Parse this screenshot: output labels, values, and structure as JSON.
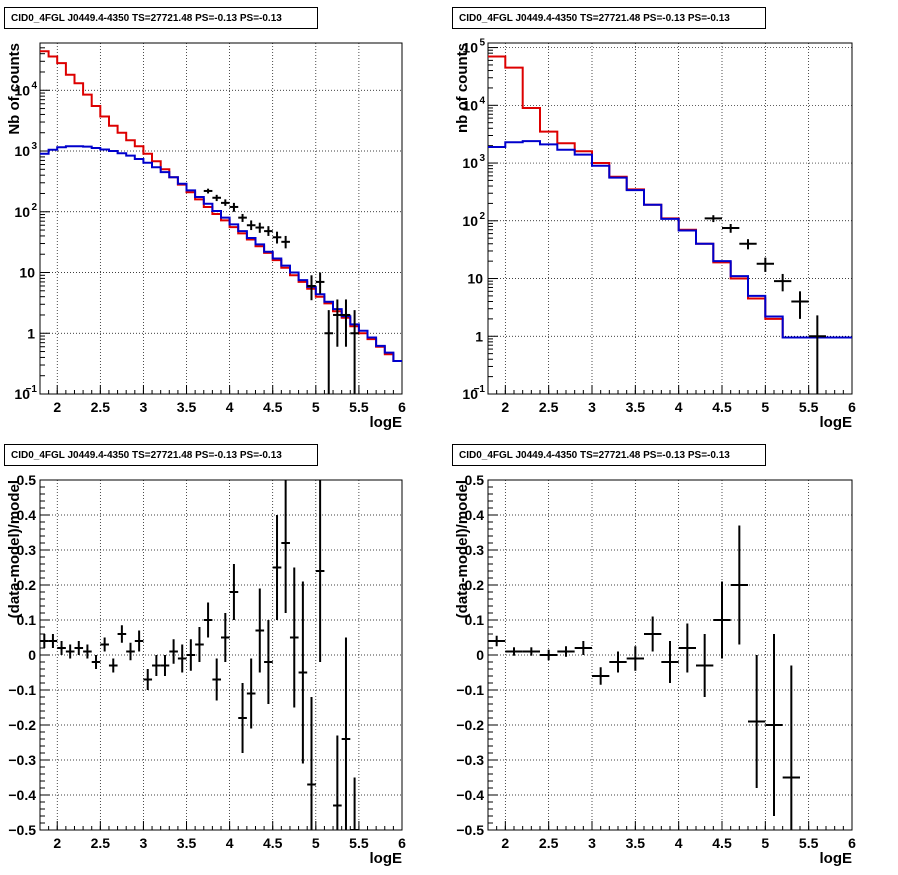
{
  "chart_data": [
    {
      "type": "line",
      "title": "CID0_4FGL J0449.4-4350 TS=27721.48 PS=-0.13 PS=-0.13",
      "xlabel": "logE",
      "ylabel": "Nb of counts",
      "xlim": [
        1.8,
        6.0
      ],
      "ylim": [
        0.1,
        60000
      ],
      "ylog": true,
      "grid": true,
      "xticks": [
        "2",
        "2.5",
        "3",
        "3.5",
        "4",
        "4.5",
        "5",
        "5.5",
        "6"
      ],
      "yticks": [
        {
          "v": 0.1,
          "label": "10",
          "sup": "−1"
        },
        {
          "v": 1,
          "label": "1",
          "sup": ""
        },
        {
          "v": 10,
          "label": "10",
          "sup": ""
        },
        {
          "v": 100,
          "label": "10",
          "sup": "2"
        },
        {
          "v": 1000,
          "label": "10",
          "sup": "3"
        },
        {
          "v": 10000,
          "label": "10",
          "sup": "4"
        }
      ],
      "bin_width": 0.1,
      "bin_start": 1.8,
      "series": [
        {
          "color": "#dd0000",
          "kind": "step",
          "values": [
            44000,
            36000,
            28000,
            18000,
            13000,
            8500,
            5500,
            3700,
            2600,
            2000,
            1500,
            1200,
            900,
            680,
            500,
            370,
            280,
            210,
            160,
            120,
            92,
            72,
            56,
            44,
            35,
            27,
            21,
            16,
            12,
            9,
            7,
            5.4,
            4,
            3.1,
            2.3,
            1.8,
            1.3,
            1.0,
            0.8,
            0.6,
            0.45,
            0.35
          ]
        },
        {
          "color": "#0000cc",
          "kind": "step",
          "values": [
            900,
            1050,
            1150,
            1200,
            1200,
            1180,
            1120,
            1060,
            1000,
            920,
            840,
            740,
            640,
            540,
            450,
            370,
            290,
            225,
            175,
            135,
            103,
            80,
            62,
            48,
            37,
            29,
            22,
            17,
            13,
            10,
            7.5,
            5.8,
            4.4,
            3.3,
            2.5,
            1.9,
            1.4,
            1.1,
            0.85,
            0.62,
            0.48,
            0.35
          ]
        }
      ],
      "points": [
        {
          "x": 3.75,
          "y": 220,
          "ylo": 200,
          "yhi": 240
        },
        {
          "x": 3.85,
          "y": 170,
          "ylo": 150,
          "yhi": 190
        },
        {
          "x": 3.95,
          "y": 140,
          "ylo": 125,
          "yhi": 160
        },
        {
          "x": 4.05,
          "y": 120,
          "ylo": 100,
          "yhi": 140
        },
        {
          "x": 4.15,
          "y": 80,
          "ylo": 68,
          "yhi": 92
        },
        {
          "x": 4.25,
          "y": 60,
          "ylo": 50,
          "yhi": 72
        },
        {
          "x": 4.35,
          "y": 55,
          "ylo": 45,
          "yhi": 66
        },
        {
          "x": 4.45,
          "y": 48,
          "ylo": 40,
          "yhi": 58
        },
        {
          "x": 4.55,
          "y": 38,
          "ylo": 30,
          "yhi": 47
        },
        {
          "x": 4.65,
          "y": 32,
          "ylo": 25,
          "yhi": 40
        },
        {
          "x": 4.95,
          "y": 6,
          "ylo": 3.5,
          "yhi": 9
        },
        {
          "x": 5.05,
          "y": 7,
          "ylo": 4.5,
          "yhi": 10
        },
        {
          "x": 5.15,
          "y": 1,
          "ylo": 0.1,
          "yhi": 2.4
        },
        {
          "x": 5.25,
          "y": 2,
          "ylo": 0.6,
          "yhi": 3.6
        },
        {
          "x": 5.35,
          "y": 2,
          "ylo": 0.6,
          "yhi": 3.6
        },
        {
          "x": 5.45,
          "y": 1,
          "ylo": 0.1,
          "yhi": 2.4
        }
      ]
    },
    {
      "type": "line",
      "title": "CID0_4FGL J0449.4-4350 TS=27721.48 PS=-0.13 PS=-0.13",
      "xlabel": "logE",
      "ylabel": "nb of counts",
      "xlim": [
        1.8,
        6.0
      ],
      "ylim": [
        0.1,
        120000
      ],
      "ylog": true,
      "grid": true,
      "xticks": [
        "2",
        "2.5",
        "3",
        "3.5",
        "4",
        "4.5",
        "5",
        "5.5",
        "6"
      ],
      "yticks": [
        {
          "v": 0.1,
          "label": "10",
          "sup": "−1"
        },
        {
          "v": 1,
          "label": "1",
          "sup": ""
        },
        {
          "v": 10,
          "label": "10",
          "sup": ""
        },
        {
          "v": 100,
          "label": "10",
          "sup": "2"
        },
        {
          "v": 1000,
          "label": "10",
          "sup": "3"
        },
        {
          "v": 10000,
          "label": "10",
          "sup": "4"
        },
        {
          "v": 100000,
          "label": "10",
          "sup": "5"
        }
      ],
      "bin_width": 0.2,
      "bin_start": 1.8,
      "series": [
        {
          "color": "#dd0000",
          "kind": "step",
          "values": [
            70000,
            45000,
            9000,
            3500,
            2200,
            1600,
            1000,
            580,
            350,
            190,
            110,
            70,
            40,
            19,
            10,
            4.5,
            2.0,
            0.95,
            0.95,
            0.95,
            0.95
          ]
        },
        {
          "color": "#0000cc",
          "kind": "step",
          "values": [
            1900,
            2300,
            2400,
            2100,
            1700,
            1400,
            900,
            560,
            340,
            190,
            108,
            68,
            40,
            20,
            11,
            5,
            2.2,
            0.95,
            0.95,
            0.95,
            0.95
          ]
        }
      ],
      "points": [
        {
          "x": 4.4,
          "y": 110,
          "ylo": 95,
          "yhi": 125
        },
        {
          "x": 4.6,
          "y": 75,
          "ylo": 62,
          "yhi": 88
        },
        {
          "x": 4.8,
          "y": 40,
          "ylo": 32,
          "yhi": 48
        },
        {
          "x": 5.0,
          "y": 18,
          "ylo": 13,
          "yhi": 23
        },
        {
          "x": 5.2,
          "y": 9,
          "ylo": 6,
          "yhi": 12
        },
        {
          "x": 5.4,
          "y": 4,
          "ylo": 2,
          "yhi": 6
        },
        {
          "x": 5.6,
          "y": 1,
          "ylo": 0.1,
          "yhi": 2.3
        }
      ]
    },
    {
      "type": "scatter",
      "title": "CID0_4FGL J0449.4-4350 TS=27721.48 PS=-0.13 PS=-0.13",
      "xlabel": "logE",
      "ylabel": "(data-model)/model",
      "xlim": [
        1.8,
        6.0
      ],
      "ylim": [
        -0.5,
        0.5
      ],
      "ylog": false,
      "grid": true,
      "xticks": [
        "2",
        "2.5",
        "3",
        "3.5",
        "4",
        "4.5",
        "5",
        "5.5",
        "6"
      ],
      "yticks": [
        "−0.5",
        "−0.4",
        "−0.3",
        "−0.2",
        "−0.1",
        "0",
        "0.1",
        "0.2",
        "0.3",
        "0.4",
        "0.5"
      ],
      "bin_width": 0.1,
      "points": [
        {
          "x": 1.85,
          "y": 0.04,
          "err": 0.02
        },
        {
          "x": 1.95,
          "y": 0.04,
          "err": 0.02
        },
        {
          "x": 2.05,
          "y": 0.02,
          "err": 0.02
        },
        {
          "x": 2.15,
          "y": 0.01,
          "err": 0.02
        },
        {
          "x": 2.25,
          "y": 0.02,
          "err": 0.02
        },
        {
          "x": 2.35,
          "y": 0.01,
          "err": 0.02
        },
        {
          "x": 2.45,
          "y": -0.02,
          "err": 0.02
        },
        {
          "x": 2.55,
          "y": 0.03,
          "err": 0.02
        },
        {
          "x": 2.65,
          "y": -0.03,
          "err": 0.02
        },
        {
          "x": 2.75,
          "y": 0.06,
          "err": 0.025
        },
        {
          "x": 2.85,
          "y": 0.01,
          "err": 0.025
        },
        {
          "x": 2.95,
          "y": 0.04,
          "err": 0.03
        },
        {
          "x": 3.05,
          "y": -0.07,
          "err": 0.03
        },
        {
          "x": 3.15,
          "y": -0.03,
          "err": 0.03
        },
        {
          "x": 3.25,
          "y": -0.03,
          "err": 0.03
        },
        {
          "x": 3.35,
          "y": 0.01,
          "err": 0.035
        },
        {
          "x": 3.45,
          "y": -0.01,
          "err": 0.04
        },
        {
          "x": 3.55,
          "y": 0.0,
          "err": 0.045
        },
        {
          "x": 3.65,
          "y": 0.03,
          "err": 0.05
        },
        {
          "x": 3.75,
          "y": 0.1,
          "err": 0.05
        },
        {
          "x": 3.85,
          "y": -0.07,
          "err": 0.06
        },
        {
          "x": 3.95,
          "y": 0.05,
          "err": 0.07
        },
        {
          "x": 4.05,
          "y": 0.18,
          "err": 0.08
        },
        {
          "x": 4.15,
          "y": -0.18,
          "err": 0.1
        },
        {
          "x": 4.25,
          "y": -0.11,
          "err": 0.1
        },
        {
          "x": 4.35,
          "y": 0.07,
          "err": 0.12
        },
        {
          "x": 4.45,
          "y": -0.02,
          "err": 0.12
        },
        {
          "x": 4.55,
          "y": 0.25,
          "err": 0.15
        },
        {
          "x": 4.65,
          "y": 0.32,
          "err": 0.2
        },
        {
          "x": 4.75,
          "y": 0.05,
          "err": 0.2
        },
        {
          "x": 4.85,
          "y": -0.05,
          "err": 0.26
        },
        {
          "x": 4.95,
          "y": -0.37,
          "err": 0.25
        },
        {
          "x": 5.05,
          "y": 0.24,
          "err": 0.26
        },
        {
          "x": 5.25,
          "y": -0.43,
          "err": 0.2
        },
        {
          "x": 5.35,
          "y": -0.24,
          "err": 0.29
        },
        {
          "x": 5.45,
          "y": -0.5,
          "err": 0.15
        }
      ]
    },
    {
      "type": "scatter",
      "title": "CID0_4FGL J0449.4-4350 TS=27721.48 PS=-0.13 PS=-0.13",
      "xlabel": "logE",
      "ylabel": "(data-model)/model",
      "xlim": [
        1.8,
        6.0
      ],
      "ylim": [
        -0.5,
        0.5
      ],
      "ylog": false,
      "grid": true,
      "xticks": [
        "2",
        "2.5",
        "3",
        "3.5",
        "4",
        "4.5",
        "5",
        "5.5",
        "6"
      ],
      "yticks": [
        "−0.5",
        "−0.4",
        "−0.3",
        "−0.2",
        "−0.1",
        "0",
        "0.1",
        "0.2",
        "0.3",
        "0.4",
        "0.5"
      ],
      "bin_width": 0.2,
      "points": [
        {
          "x": 1.9,
          "y": 0.04,
          "err": 0.015
        },
        {
          "x": 2.1,
          "y": 0.01,
          "err": 0.012
        },
        {
          "x": 2.3,
          "y": 0.01,
          "err": 0.012
        },
        {
          "x": 2.5,
          "y": 0.0,
          "err": 0.015
        },
        {
          "x": 2.7,
          "y": 0.01,
          "err": 0.015
        },
        {
          "x": 2.9,
          "y": 0.02,
          "err": 0.02
        },
        {
          "x": 3.1,
          "y": -0.06,
          "err": 0.025
        },
        {
          "x": 3.3,
          "y": -0.02,
          "err": 0.03
        },
        {
          "x": 3.5,
          "y": -0.01,
          "err": 0.035
        },
        {
          "x": 3.7,
          "y": 0.06,
          "err": 0.05
        },
        {
          "x": 3.9,
          "y": -0.02,
          "err": 0.06
        },
        {
          "x": 4.1,
          "y": 0.02,
          "err": 0.07
        },
        {
          "x": 4.3,
          "y": -0.03,
          "err": 0.09
        },
        {
          "x": 4.5,
          "y": 0.1,
          "err": 0.11
        },
        {
          "x": 4.7,
          "y": 0.2,
          "err": 0.17
        },
        {
          "x": 4.9,
          "y": -0.19,
          "err": 0.19
        },
        {
          "x": 5.1,
          "y": -0.2,
          "err": 0.26
        },
        {
          "x": 5.3,
          "y": -0.35,
          "err": 0.32
        }
      ]
    }
  ]
}
